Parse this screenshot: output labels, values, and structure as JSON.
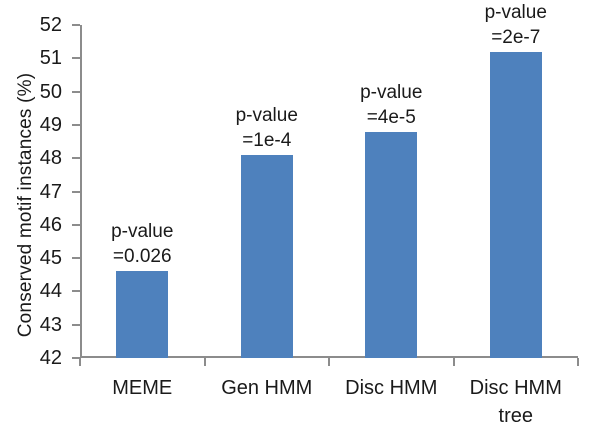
{
  "chart_data": {
    "type": "bar",
    "title": "",
    "xlabel": "",
    "ylabel": "Conserved motif instances (%)",
    "ylim": [
      42,
      52
    ],
    "ytick_step": 1,
    "grid": false,
    "legend": false,
    "categories": [
      "MEME",
      "Gen HMM",
      "Disc HMM",
      "Disc HMM tree"
    ],
    "values": [
      44.6,
      48.1,
      48.8,
      51.2
    ],
    "annotations": [
      {
        "line1": "p-value",
        "line2": "=0.026"
      },
      {
        "line1": "p-value",
        "line2": "=1e-4"
      },
      {
        "line1": "p-value",
        "line2": "=4e-5"
      },
      {
        "line1": "p-value",
        "line2": "=2e-7"
      }
    ],
    "colors": {
      "bar": "#4e81bd",
      "axis": "#8c8c8c",
      "text": "#1a1a1a"
    }
  }
}
